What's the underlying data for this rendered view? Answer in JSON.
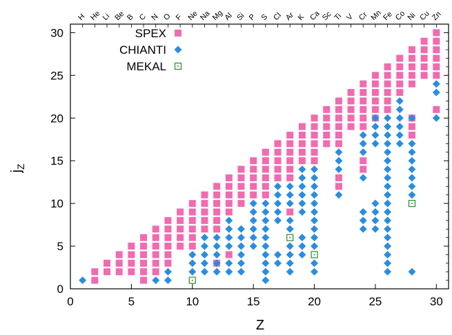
{
  "chart_data": {
    "type": "scatter",
    "title": "",
    "xlabel": "Z",
    "ylabel": "j",
    "ylabel_sub": "Z",
    "xlim": [
      0,
      31
    ],
    "ylim": [
      0,
      31
    ],
    "xticks": [
      0,
      5,
      10,
      15,
      20,
      25,
      30
    ],
    "yticks": [
      0,
      5,
      10,
      15,
      20,
      25,
      30
    ],
    "grid": false,
    "legend": "top-left",
    "top_axis_labels": [
      "H",
      "He",
      "Li",
      "Be",
      "B",
      "C",
      "N",
      "O",
      "F",
      "Ne",
      "Na",
      "Mg",
      "Al",
      "Si",
      "P",
      "S",
      "Cl",
      "Ar",
      "K",
      "Ca",
      "Sc",
      "Ti",
      "V",
      "Cr",
      "Mn",
      "Fe",
      "Co",
      "Ni",
      "Cu",
      "Zn"
    ],
    "colors": {
      "SPEX": "#f06bb0",
      "CHIANTI": "#2a8de0",
      "MEKAL": "#2a8a2a"
    },
    "series": [
      {
        "name": "SPEX",
        "marker": "filled-square",
        "color": "#f06bb0",
        "points_by_z": [
          {
            "z": 2,
            "j": [
              1,
              2
            ]
          },
          {
            "z": 3,
            "j": [
              2,
              3
            ]
          },
          {
            "z": 4,
            "j": [
              2,
              3,
              4
            ]
          },
          {
            "z": 5,
            "j": [
              2,
              3,
              4,
              5
            ]
          },
          {
            "z": 6,
            "j": [
              1,
              2,
              3,
              4,
              5,
              6
            ]
          },
          {
            "z": 7,
            "j": [
              2,
              3,
              4,
              5,
              6,
              7
            ]
          },
          {
            "z": 8,
            "j": [
              3,
              4,
              5,
              6,
              7,
              8
            ]
          },
          {
            "z": 9,
            "j": [
              5,
              6,
              7,
              8,
              9
            ]
          },
          {
            "z": 10,
            "j": [
              5,
              6,
              7,
              8,
              9,
              10
            ]
          },
          {
            "z": 11,
            "j": [
              7,
              8,
              9,
              10,
              11
            ]
          },
          {
            "z": 12,
            "j": [
              3,
              7,
              8,
              9,
              10,
              11,
              12
            ]
          },
          {
            "z": 13,
            "j": [
              4,
              9,
              10,
              11,
              12,
              13
            ]
          },
          {
            "z": 14,
            "j": [
              10,
              11,
              12,
              13,
              14
            ]
          },
          {
            "z": 15,
            "j": [
              11,
              12,
              13,
              14,
              15
            ]
          },
          {
            "z": 16,
            "j": [
              11,
              12,
              13,
              14,
              15,
              16
            ]
          },
          {
            "z": 17,
            "j": [
              13,
              14,
              15,
              16,
              17
            ]
          },
          {
            "z": 18,
            "j": [
              9,
              13,
              14,
              15,
              16,
              17,
              18
            ]
          },
          {
            "z": 19,
            "j": [
              15,
              16,
              17,
              18,
              19
            ]
          },
          {
            "z": 20,
            "j": [
              15,
              16,
              17,
              18,
              19,
              20
            ]
          },
          {
            "z": 21,
            "j": [
              17,
              18,
              19,
              20,
              21
            ]
          },
          {
            "z": 22,
            "j": [
              12,
              13,
              17,
              18,
              19,
              20,
              21,
              22
            ]
          },
          {
            "z": 23,
            "j": [
              19,
              20,
              21,
              22,
              23
            ]
          },
          {
            "z": 24,
            "j": [
              14,
              15,
              19,
              20,
              21,
              22,
              23,
              24
            ]
          },
          {
            "z": 25,
            "j": [
              20,
              21,
              22,
              23,
              24,
              25
            ]
          },
          {
            "z": 26,
            "j": [
              21,
              22,
              23,
              24,
              25,
              26
            ]
          },
          {
            "z": 27,
            "j": [
              23,
              24,
              25,
              26,
              27
            ]
          },
          {
            "z": 28,
            "j": [
              18,
              19,
              20,
              24,
              25,
              26,
              27,
              28
            ]
          },
          {
            "z": 29,
            "j": [
              25,
              26,
              27,
              28,
              29
            ]
          },
          {
            "z": 30,
            "j": [
              21,
              25,
              26,
              27,
              28,
              29,
              30
            ]
          }
        ]
      },
      {
        "name": "CHIANTI",
        "marker": "filled-diamond",
        "color": "#2a8de0",
        "points_by_z": [
          {
            "z": 1,
            "j": [
              1
            ]
          },
          {
            "z": 7,
            "j": [
              1
            ]
          },
          {
            "z": 8,
            "j": [
              1,
              2
            ]
          },
          {
            "z": 10,
            "j": [
              2,
              3,
              4
            ]
          },
          {
            "z": 11,
            "j": [
              2,
              3,
              4,
              5,
              6
            ]
          },
          {
            "z": 12,
            "j": [
              2,
              3,
              4,
              5,
              6
            ]
          },
          {
            "z": 13,
            "j": [
              2,
              3,
              5,
              6,
              7,
              8
            ]
          },
          {
            "z": 14,
            "j": [
              2,
              3,
              4,
              5,
              6,
              7
            ]
          },
          {
            "z": 15,
            "j": [
              5,
              6,
              7,
              8,
              9,
              10
            ]
          },
          {
            "z": 16,
            "j": [
              1,
              2,
              3,
              4,
              5,
              6,
              7,
              8,
              9,
              10
            ]
          },
          {
            "z": 17,
            "j": [
              3,
              4,
              8,
              9,
              10,
              11,
              12
            ]
          },
          {
            "z": 18,
            "j": [
              2,
              3,
              4,
              5,
              7,
              8,
              10,
              11,
              12
            ]
          },
          {
            "z": 19,
            "j": [
              4,
              5,
              6,
              9,
              10,
              11,
              12,
              13,
              14
            ]
          },
          {
            "z": 20,
            "j": [
              2,
              3,
              5,
              6,
              7,
              8,
              9,
              10,
              11,
              12,
              13,
              14
            ]
          },
          {
            "z": 22,
            "j": [
              11,
              14,
              15,
              16
            ]
          },
          {
            "z": 24,
            "j": [
              7,
              8,
              9,
              13,
              16,
              17,
              18
            ]
          },
          {
            "z": 25,
            "j": [
              7,
              8,
              9,
              10,
              17,
              18,
              19,
              20
            ]
          },
          {
            "z": 26,
            "j": [
              2,
              3,
              4,
              5,
              6,
              7,
              8,
              9,
              10,
              11,
              12,
              13,
              14,
              15,
              16,
              17,
              18,
              19,
              20
            ]
          },
          {
            "z": 27,
            "j": [
              17,
              18,
              19,
              20,
              21,
              22
            ]
          },
          {
            "z": 28,
            "j": [
              2,
              11,
              12,
              13,
              14,
              15,
              16,
              17,
              20
            ]
          },
          {
            "z": 30,
            "j": [
              20,
              23,
              24
            ]
          }
        ]
      },
      {
        "name": "MEKAL",
        "marker": "open-square-dot",
        "color": "#2a8a2a",
        "points": [
          [
            10,
            1
          ],
          [
            18,
            6
          ],
          [
            20,
            4
          ],
          [
            28,
            10
          ]
        ]
      }
    ]
  }
}
